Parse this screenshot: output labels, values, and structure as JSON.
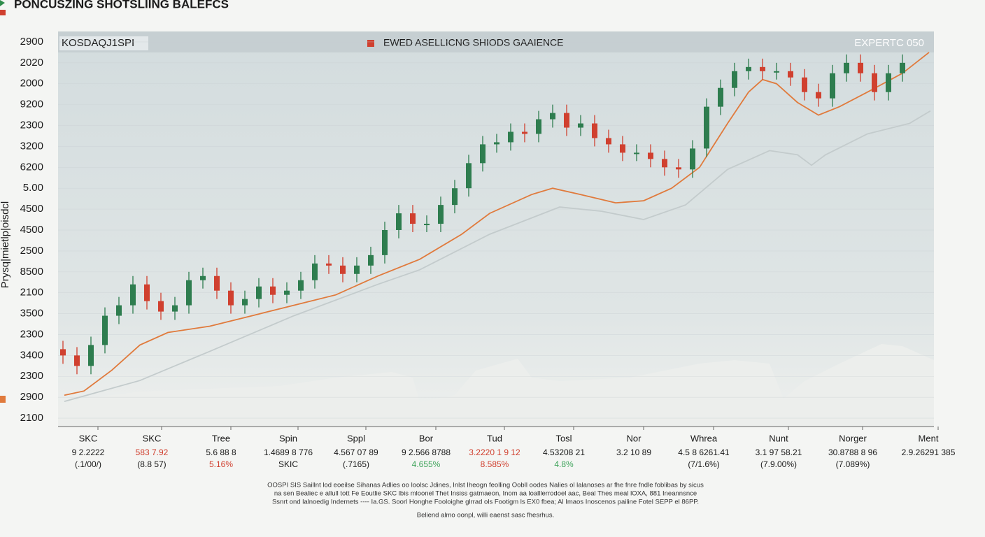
{
  "chart_data": {
    "type": "candlestick",
    "title": "PONCUSZING SHOTSLIING BALEFCS",
    "panel_label": "KOSDAQJ1SPI",
    "legend_text": "EWED ASELLICNG SHIODS GAAIENCE",
    "corner_text": "EXPERTC 050",
    "y_label": "Prysq|mietlp|oisdcl",
    "xlim": [
      -0.35,
      62.25
    ],
    "ylim": [
      -0.4,
      18.5
    ],
    "yticks": [
      {
        "value": 18,
        "label": "2900"
      },
      {
        "value": 17,
        "label": "2020"
      },
      {
        "value": 16,
        "label": "2000"
      },
      {
        "value": 15,
        "label": "9200"
      },
      {
        "value": 14,
        "label": "2300"
      },
      {
        "value": 13,
        "label": "3200"
      },
      {
        "value": 12,
        "label": "6200"
      },
      {
        "value": 11,
        "label": "5.00"
      },
      {
        "value": 10,
        "label": "4500"
      },
      {
        "value": 9,
        "label": "4500"
      },
      {
        "value": 8,
        "label": "2500"
      },
      {
        "value": 7,
        "label": "8500"
      },
      {
        "value": 6,
        "label": "2100"
      },
      {
        "value": 5,
        "label": "3500"
      },
      {
        "value": 4,
        "label": "2300"
      },
      {
        "value": 3,
        "label": "3400"
      },
      {
        "value": 2,
        "label": "2300"
      },
      {
        "value": 1,
        "label": "2900"
      },
      {
        "value": 0,
        "label": "2100"
      }
    ],
    "grid": true,
    "up_color": "#2e7d4f",
    "down_color": "#d0402f",
    "open": [
      3.3,
      3.0,
      2.5,
      3.5,
      4.9,
      5.4,
      6.4,
      5.6,
      5.1,
      5.4,
      6.6,
      6.8,
      6.1,
      5.4,
      5.7,
      6.3,
      5.9,
      6.1,
      6.6,
      7.4,
      7.3,
      6.9,
      7.3,
      7.8,
      9.0,
      9.8,
      9.3,
      9.3,
      10.2,
      11.0,
      12.2,
      13.1,
      13.2,
      13.7,
      13.6,
      14.3,
      14.6,
      13.9,
      14.1,
      13.4,
      13.1,
      12.7,
      12.7,
      12.4,
      12.0,
      11.9,
      12.9,
      14.9,
      15.8,
      16.6,
      16.8,
      16.6,
      16.6,
      16.3,
      15.6,
      15.3,
      16.5,
      17.0,
      16.5,
      15.6,
      16.5
    ],
    "high": [
      3.7,
      3.4,
      3.9,
      5.3,
      5.8,
      6.8,
      6.8,
      6.0,
      5.8,
      7.0,
      7.2,
      7.2,
      6.5,
      6.1,
      6.7,
      6.7,
      6.5,
      7.0,
      7.8,
      7.8,
      7.7,
      7.7,
      8.2,
      9.4,
      10.2,
      10.2,
      9.7,
      10.6,
      11.4,
      12.6,
      13.5,
      13.6,
      14.1,
      14.1,
      14.7,
      15.0,
      15.0,
      14.5,
      14.5,
      13.8,
      13.5,
      13.1,
      13.1,
      12.8,
      12.4,
      13.3,
      15.3,
      16.2,
      17.0,
      17.2,
      17.2,
      17.0,
      17.0,
      16.7,
      16.0,
      16.9,
      17.4,
      17.4,
      16.9,
      16.9,
      17.4
    ],
    "low": [
      2.6,
      2.1,
      2.1,
      3.1,
      4.5,
      5.0,
      5.2,
      4.7,
      4.7,
      5.0,
      6.2,
      5.7,
      5.0,
      5.0,
      5.3,
      5.5,
      5.5,
      5.7,
      6.2,
      6.9,
      6.5,
      6.5,
      6.9,
      7.4,
      8.6,
      8.9,
      8.9,
      8.9,
      9.8,
      10.6,
      11.8,
      12.7,
      12.8,
      13.2,
      13.2,
      13.9,
      13.5,
      13.5,
      13.0,
      12.7,
      12.3,
      12.3,
      12.0,
      11.6,
      11.5,
      11.5,
      12.5,
      14.5,
      15.4,
      16.2,
      16.2,
      16.2,
      15.9,
      15.2,
      14.9,
      14.9,
      16.1,
      16.1,
      15.2,
      15.2,
      16.1
    ],
    "close": [
      3.0,
      2.5,
      3.5,
      4.9,
      5.4,
      6.4,
      5.6,
      5.1,
      5.4,
      6.6,
      6.8,
      6.1,
      5.4,
      5.7,
      6.3,
      5.9,
      6.1,
      6.6,
      7.4,
      7.3,
      6.9,
      7.3,
      7.8,
      9.0,
      9.8,
      9.3,
      9.3,
      10.2,
      11.0,
      12.2,
      13.1,
      13.2,
      13.7,
      13.6,
      14.3,
      14.6,
      13.9,
      14.1,
      13.4,
      13.1,
      12.7,
      12.7,
      12.4,
      12.0,
      11.9,
      12.9,
      14.9,
      15.8,
      16.6,
      16.8,
      16.6,
      16.6,
      16.3,
      15.6,
      15.3,
      16.5,
      17.0,
      16.5,
      15.6,
      16.5,
      17.0
    ],
    "lines": [
      {
        "color": "#e07a3c",
        "x": [
          0.1,
          1.5,
          3.5,
          5.5,
          7.5,
          10.5,
          13.5,
          16.5,
          19.5,
          22.5,
          25.5,
          28.5,
          30.5,
          33.5,
          35,
          37,
          39.5,
          41.5,
          43.5,
          45.5,
          47.5,
          49,
          50,
          51,
          52.5,
          54,
          55.5,
          57.5,
          60,
          61.9
        ],
        "values": [
          1.1,
          1.3,
          2.3,
          3.5,
          4.1,
          4.4,
          4.9,
          5.4,
          5.9,
          6.8,
          7.6,
          8.8,
          9.8,
          10.7,
          11.0,
          10.7,
          10.3,
          10.4,
          11.0,
          12.0,
          14.1,
          15.6,
          16.2,
          16.0,
          15.1,
          14.5,
          14.9,
          15.6,
          16.5,
          17.5
        ]
      },
      {
        "color": "#c3cbcc",
        "x": [
          0.1,
          5.5,
          10.5,
          16.5,
          22.5,
          25.5,
          30.5,
          35.5,
          38.5,
          41.5,
          44.5,
          47.5,
          50.5,
          52.5,
          53.5,
          54.5,
          57.5,
          60.5,
          62
        ],
        "values": [
          0.8,
          1.8,
          3.2,
          4.9,
          6.4,
          7.1,
          8.8,
          10.1,
          9.9,
          9.5,
          10.2,
          11.9,
          12.8,
          12.6,
          12.1,
          12.6,
          13.6,
          14.1,
          14.7
        ]
      }
    ]
  },
  "summary": [
    {
      "label": "SKC",
      "value": "9 2.2222",
      "change": "(.1/00/)"
    },
    {
      "label": "SKC",
      "value": "583 7.92",
      "change": "(8.8 57)",
      "value_color": "#d0402f"
    },
    {
      "label": "Tree",
      "value": "5.6 88 8",
      "change": "5.16%",
      "change_color": "#d0402f"
    },
    {
      "label": "Spin",
      "value": "1.4689 8 776",
      "change": "SKIC"
    },
    {
      "label": "Sppl",
      "value": "4.567 07 89",
      "change": "(.7165)"
    },
    {
      "label": "Bor",
      "value": "9 2.566 8788",
      "change": "4.655%",
      "change_color": "#3fa45b"
    },
    {
      "label": "Tud",
      "value": "3.2220 1 9 12",
      "change": "8.585%",
      "value_color": "#d0402f",
      "change_color": "#d0402f"
    },
    {
      "label": "Tosl",
      "value": "4.53208 21",
      "change": "4.8%",
      "change_color": "#3fa45b"
    },
    {
      "label": "Nor",
      "value": "3.2 10 89"
    },
    {
      "label": "Whrea",
      "value": "4.5 8 6261.41",
      "change": "(7/1.6%)"
    },
    {
      "label": "Nunt",
      "value": "3.1 97 58.21",
      "change": "(7.9.00%)"
    },
    {
      "label": "Norger",
      "value": "30.8788 8 96",
      "change": "(7.089%)"
    },
    {
      "label": "Ment",
      "value": "2.9.26291 385"
    }
  ],
  "footnotes": [
    "OOSPI SIS Saillnt lod eoeilse Sihanas Adlies oo loolsc Jdines, Inlst Iheogn feolling Oobll oodes Nalies ol lalanoses ar fhe fnre fndle foblibas by sicus",
    "na sen Bealiec e allull tott Fe Eoutlie SKC lbis mloonel Thet Insiss gatmaeon, Inom aa loalllerrodoel aac, Beal Thes meal lOXA, 881 Ineannsnce",
    "Ssnrt ond lalnoedig Indernets ---- Ia.GS. Soorl Honghe Fooloighe glrrad ols Footigm ls EX0 fbea; Al Imaos Inoscenos pailine Fotel SEPP el 86PP.",
    "Beliend almo oonpl, willi eaenst sasc fhesrhus."
  ]
}
